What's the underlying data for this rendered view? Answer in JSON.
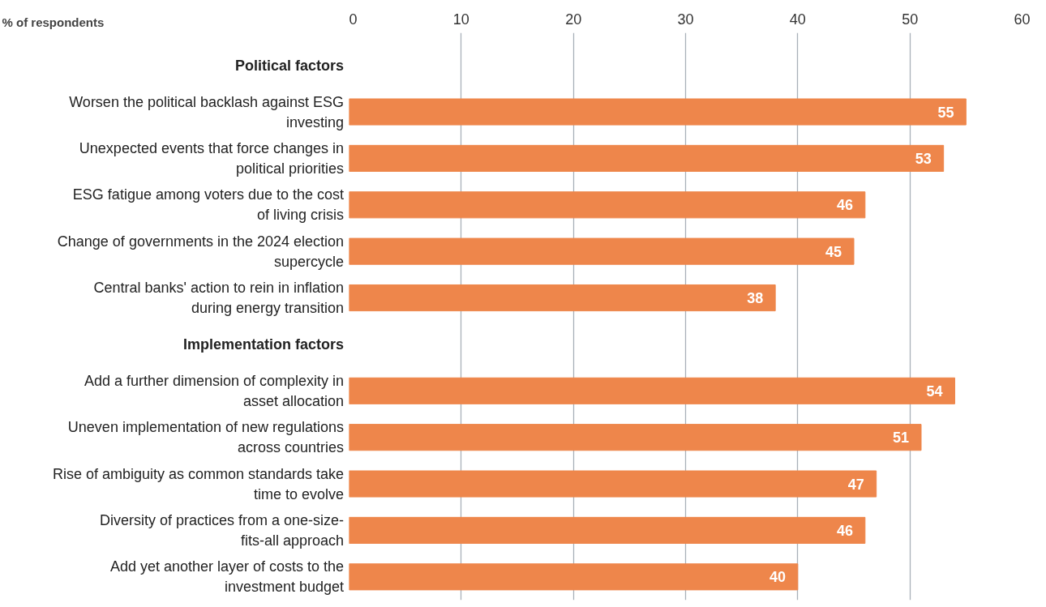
{
  "chart_data": {
    "type": "bar",
    "orientation": "horizontal",
    "xlabel": "% of respondents",
    "categories": [
      "Political factors",
      "Worsen the political backlash against ESG investing",
      "Unexpected events that force changes in political priorities",
      "ESG fatigue among voters due to the cost of living crisis",
      "Change of governments in the 2024 election supercycle",
      "Central banks' action to rein in inflation during energy transition",
      "Implementation factors",
      "Add a further dimension of complexity in asset allocation",
      "Uneven implementation of new regulations across countries",
      "Rise of ambiguity as common standards take time to evolve",
      "Diversity of practices from a one-size-fits-all approach",
      "Add yet another layer of costs to the investment budget"
    ],
    "values": [
      null,
      55,
      53,
      46,
      45,
      38,
      null,
      54,
      51,
      47,
      46,
      40
    ],
    "color": "#ee864b",
    "data_labels": true,
    "xlim": [
      0,
      60
    ],
    "xticks": [
      0,
      10,
      20,
      30,
      40,
      50,
      60
    ],
    "grid": "x"
  }
}
